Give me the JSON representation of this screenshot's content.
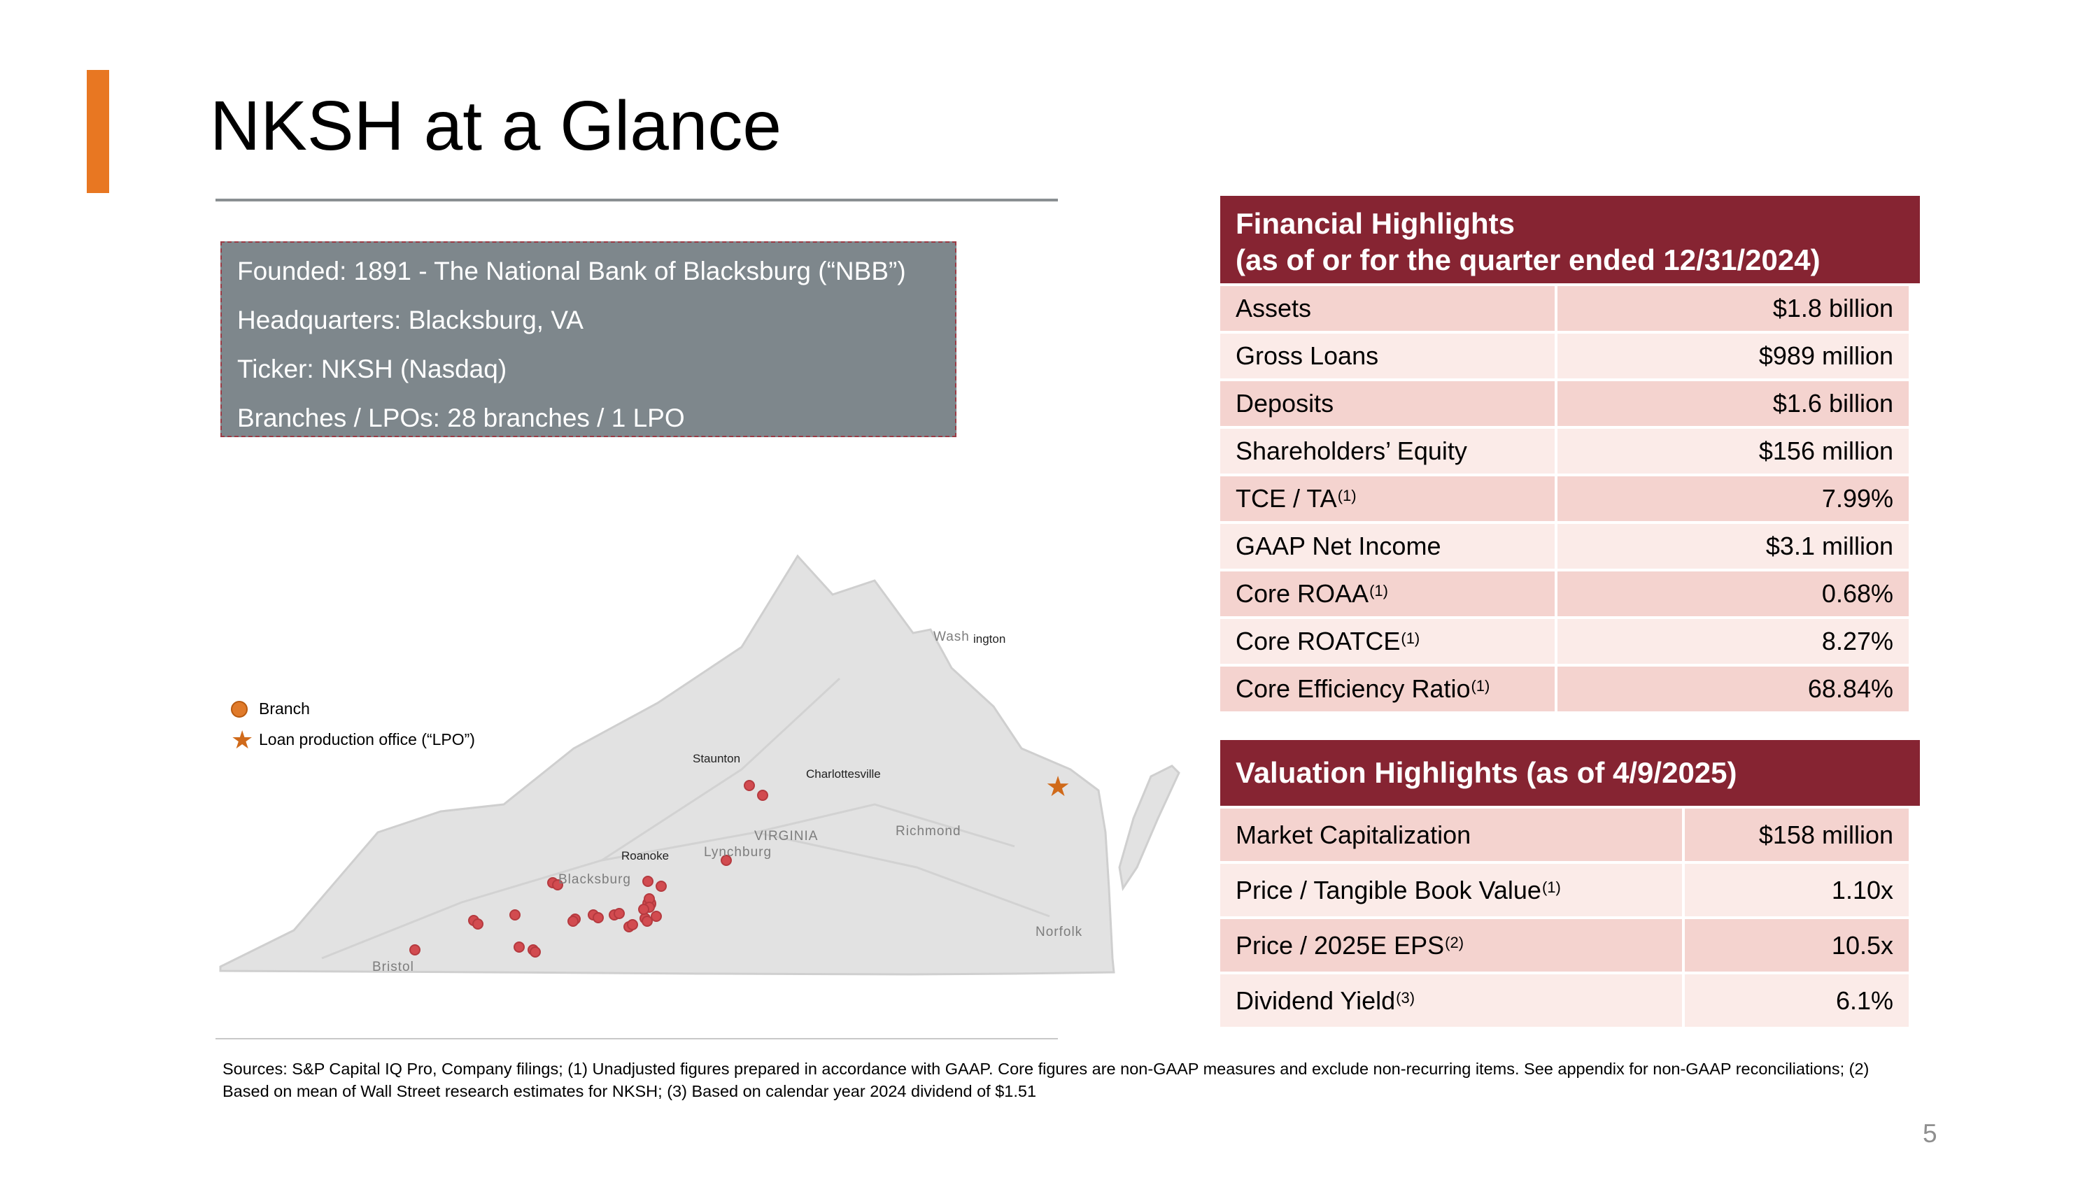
{
  "colors": {
    "accent": "#e87722",
    "header": "#862432",
    "row_dark": "#f4d3cf",
    "row_light": "#fbebe8",
    "info_box": "#7e878c"
  },
  "title": "NKSH at a Glance",
  "info_box": [
    "Founded: 1891 - The National Bank of Blacksburg (“NBB”)",
    "Headquarters: Blacksburg, VA",
    "Ticker: NKSH (Nasdaq)",
    "Branches / LPOs: 28 branches / 1 LPO"
  ],
  "legend": {
    "branch": "Branch",
    "lpo": "Loan production office (“LPO”)"
  },
  "map": {
    "labels": {
      "staunton": "Staunton",
      "charlottesville": "Charlottesville",
      "roanoke": "Roanoke",
      "washington_suffix": "ington"
    },
    "basemap_labels": {
      "washington": "Wash",
      "virginia": "VIRGINIA",
      "richmond": "Richmond",
      "lynchburg": "Lynchburg",
      "blacksburg": "Blacksburg",
      "norfolk": "Norfolk",
      "bristol": "Bristol"
    }
  },
  "financial": {
    "title_line1": "Financial Highlights",
    "title_line2": "(as of or for the quarter ended 12/31/2024)",
    "rows": [
      {
        "label": "Assets",
        "note": "",
        "value": "$1.8 billion"
      },
      {
        "label": "Gross Loans",
        "note": "",
        "value": "$989 million"
      },
      {
        "label": "Deposits",
        "note": "",
        "value": "$1.6 billion"
      },
      {
        "label": "Shareholders’ Equity",
        "note": "",
        "value": "$156 million"
      },
      {
        "label": "TCE / TA",
        "note": "(1)",
        "value": "7.99%"
      },
      {
        "label": "GAAP Net Income",
        "note": "",
        "value": "$3.1 million"
      },
      {
        "label": "Core ROAA",
        "note": "(1)",
        "value": "0.68%"
      },
      {
        "label": "Core ROATCE",
        "note": "(1)",
        "value": "8.27%"
      },
      {
        "label": "Core Efficiency Ratio",
        "note": "(1)",
        "value": "68.84%"
      }
    ]
  },
  "valuation": {
    "title": "Valuation Highlights (as of 4/9/2025)",
    "rows": [
      {
        "label": "Market Capitalization",
        "note": "",
        "value": "$158 million"
      },
      {
        "label": "Price / Tangible Book Value",
        "note": "(1)",
        "value": "1.10x"
      },
      {
        "label": "Price / 2025E EPS",
        "note": "(2)",
        "value": "10.5x"
      },
      {
        "label": "Dividend Yield",
        "note": "(3)",
        "value": "6.1%"
      }
    ]
  },
  "sources": "Sources: S&P Capital IQ Pro, Company filings; (1) Unadjusted figures prepared in accordance with GAAP. Core figures are non-GAAP measures and exclude non-recurring items. See appendix for non-GAAP reconciliations; (2) Based on mean of Wall Street research estimates for NKSH; (3) Based on calendar year 2024 dividend of $1.51",
  "page_number": "5"
}
